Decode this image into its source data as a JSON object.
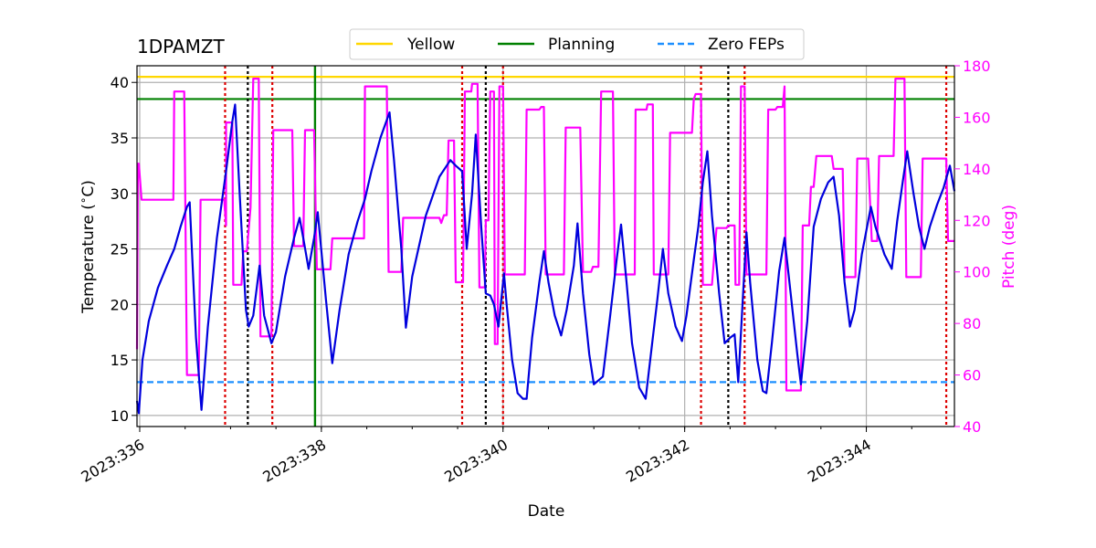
{
  "chart_data": {
    "type": "line",
    "title": "1DPAMZT",
    "xlabel": "Date",
    "ylabel_left": "Temperature ($^\\circ$C)",
    "ylabel_right": "Pitch (deg)",
    "xlim": [
      335.97,
      344.97
    ],
    "ylim_left": [
      9.0,
      41.5
    ],
    "ylim_right": [
      40,
      180
    ],
    "x_ticks": [
      {
        "value": 336,
        "label": "2023:336"
      },
      {
        "value": 338,
        "label": "2023:338"
      },
      {
        "value": 340,
        "label": "2023:340"
      },
      {
        "value": 342,
        "label": "2023:342"
      },
      {
        "value": 344,
        "label": "2023:344"
      }
    ],
    "y_ticks_left": [
      10,
      15,
      20,
      25,
      30,
      35,
      40
    ],
    "y_ticks_right": [
      40,
      60,
      80,
      100,
      120,
      140,
      160,
      180
    ],
    "grid": true,
    "legend_position": "top-center",
    "legend": [
      {
        "label": "Yellow",
        "color": "#ffd700",
        "style": "solid"
      },
      {
        "label": "Planning",
        "color": "#008000",
        "style": "solid"
      },
      {
        "label": "Zero FEPs",
        "color": "#1e90ff",
        "style": "dashed"
      }
    ],
    "hlines": [
      {
        "name": "yellow",
        "value": 40.5,
        "color": "#ffd700",
        "style": "solid"
      },
      {
        "name": "planning",
        "value": 38.5,
        "color": "#008000",
        "style": "solid"
      },
      {
        "name": "zero-feps",
        "value": 13.0,
        "color": "#1e90ff",
        "style": "dashed"
      }
    ],
    "vlines_red": [
      336.94,
      337.46,
      339.55,
      340.0,
      342.18,
      342.66,
      344.88
    ],
    "vlines_black": [
      337.19,
      339.81,
      342.48
    ],
    "vline_green": 337.93,
    "series": [
      {
        "name": "1DPAMZT",
        "axis": "left",
        "color": "#0000dd",
        "points": [
          [
            335.97,
            11.3
          ],
          [
            335.99,
            10.2
          ],
          [
            336.03,
            15.0
          ],
          [
            336.1,
            18.5
          ],
          [
            336.2,
            21.5
          ],
          [
            336.3,
            23.5
          ],
          [
            336.38,
            25.0
          ],
          [
            336.45,
            27.0
          ],
          [
            336.52,
            28.8
          ],
          [
            336.55,
            29.2
          ],
          [
            336.62,
            17.0
          ],
          [
            336.68,
            10.5
          ],
          [
            336.75,
            18.0
          ],
          [
            336.85,
            26.0
          ],
          [
            336.95,
            32.0
          ],
          [
            337.02,
            36.5
          ],
          [
            337.05,
            38.0
          ],
          [
            337.1,
            30.0
          ],
          [
            337.17,
            19.5
          ],
          [
            337.2,
            18.0
          ],
          [
            337.25,
            19.0
          ],
          [
            337.32,
            23.5
          ],
          [
            337.37,
            19.0
          ],
          [
            337.45,
            16.5
          ],
          [
            337.5,
            17.5
          ],
          [
            337.6,
            22.5
          ],
          [
            337.7,
            26.0
          ],
          [
            337.76,
            27.8
          ],
          [
            337.8,
            26.0
          ],
          [
            337.86,
            23.2
          ],
          [
            337.92,
            26.0
          ],
          [
            337.96,
            28.3
          ],
          [
            338.05,
            20.5
          ],
          [
            338.12,
            14.7
          ],
          [
            338.2,
            19.5
          ],
          [
            338.3,
            24.5
          ],
          [
            338.4,
            27.5
          ],
          [
            338.48,
            29.5
          ],
          [
            338.55,
            32.0
          ],
          [
            338.65,
            35.0
          ],
          [
            338.75,
            37.3
          ],
          [
            338.8,
            33.0
          ],
          [
            338.88,
            25.0
          ],
          [
            338.93,
            17.9
          ],
          [
            339.0,
            22.5
          ],
          [
            339.15,
            28.0
          ],
          [
            339.3,
            31.5
          ],
          [
            339.42,
            33.0
          ],
          [
            339.48,
            32.5
          ],
          [
            339.55,
            32.0
          ],
          [
            339.6,
            25.0
          ],
          [
            339.66,
            30.0
          ],
          [
            339.7,
            35.3
          ],
          [
            339.76,
            27.0
          ],
          [
            339.81,
            21.0
          ],
          [
            339.86,
            20.8
          ],
          [
            339.9,
            20.0
          ],
          [
            339.95,
            18.0
          ],
          [
            340.01,
            22.8
          ],
          [
            340.04,
            20.0
          ],
          [
            340.1,
            15.0
          ],
          [
            340.16,
            12.0
          ],
          [
            340.22,
            11.5
          ],
          [
            340.26,
            11.5
          ],
          [
            340.32,
            17.0
          ],
          [
            340.4,
            22.0
          ],
          [
            340.45,
            24.8
          ],
          [
            340.5,
            22.0
          ],
          [
            340.57,
            19.0
          ],
          [
            340.64,
            17.2
          ],
          [
            340.7,
            19.5
          ],
          [
            340.78,
            23.5
          ],
          [
            340.82,
            27.3
          ],
          [
            340.88,
            21.0
          ],
          [
            340.95,
            15.5
          ],
          [
            341.0,
            12.8
          ],
          [
            341.1,
            13.5
          ],
          [
            341.18,
            19.0
          ],
          [
            341.25,
            24.0
          ],
          [
            341.3,
            27.2
          ],
          [
            341.36,
            22.0
          ],
          [
            341.42,
            16.5
          ],
          [
            341.5,
            12.5
          ],
          [
            341.57,
            11.5
          ],
          [
            341.62,
            15.0
          ],
          [
            341.7,
            20.5
          ],
          [
            341.76,
            25.0
          ],
          [
            341.82,
            21.0
          ],
          [
            341.9,
            18.0
          ],
          [
            341.97,
            16.7
          ],
          [
            342.02,
            19.0
          ],
          [
            342.1,
            24.0
          ],
          [
            342.15,
            27.0
          ],
          [
            342.2,
            31.0
          ],
          [
            342.25,
            33.8
          ],
          [
            342.3,
            28.0
          ],
          [
            342.38,
            21.0
          ],
          [
            342.44,
            16.5
          ],
          [
            342.5,
            17.0
          ],
          [
            342.55,
            17.3
          ],
          [
            342.59,
            13.0
          ],
          [
            342.65,
            22.0
          ],
          [
            342.68,
            26.5
          ],
          [
            342.72,
            22.0
          ],
          [
            342.8,
            15.0
          ],
          [
            342.86,
            12.2
          ],
          [
            342.9,
            12.0
          ],
          [
            342.96,
            16.5
          ],
          [
            343.04,
            23.0
          ],
          [
            343.1,
            26.0
          ],
          [
            343.18,
            20.0
          ],
          [
            343.24,
            15.5
          ],
          [
            343.28,
            12.8
          ],
          [
            343.35,
            18.5
          ],
          [
            343.42,
            27.0
          ],
          [
            343.5,
            29.5
          ],
          [
            343.58,
            31.0
          ],
          [
            343.64,
            31.5
          ],
          [
            343.7,
            28.0
          ],
          [
            343.76,
            22.0
          ],
          [
            343.82,
            18.0
          ],
          [
            343.87,
            19.5
          ],
          [
            343.95,
            24.5
          ],
          [
            344.05,
            28.8
          ],
          [
            344.1,
            27.0
          ],
          [
            344.2,
            24.5
          ],
          [
            344.28,
            23.2
          ],
          [
            344.34,
            27.5
          ],
          [
            344.4,
            31.0
          ],
          [
            344.45,
            33.8
          ],
          [
            344.52,
            30.0
          ],
          [
            344.58,
            27.0
          ],
          [
            344.64,
            25.0
          ],
          [
            344.7,
            27.0
          ],
          [
            344.78,
            29.0
          ],
          [
            344.85,
            30.5
          ],
          [
            344.92,
            32.5
          ],
          [
            344.97,
            30.2
          ]
        ]
      },
      {
        "name": "Pitch",
        "axis": "right",
        "color": "#ff00ff",
        "points": [
          [
            335.97,
            70
          ],
          [
            335.98,
            142
          ],
          [
            335.99,
            142
          ],
          [
            336.02,
            128
          ],
          [
            336.37,
            128
          ],
          [
            336.38,
            170
          ],
          [
            336.49,
            170
          ],
          [
            336.52,
            60
          ],
          [
            336.65,
            60
          ],
          [
            336.67,
            128
          ],
          [
            336.93,
            128
          ],
          [
            336.95,
            118
          ],
          [
            336.95,
            158
          ],
          [
            337.02,
            158
          ],
          [
            337.03,
            95
          ],
          [
            337.12,
            95
          ],
          [
            337.14,
            108
          ],
          [
            337.18,
            108
          ],
          [
            337.22,
            125
          ],
          [
            337.25,
            175
          ],
          [
            337.31,
            175
          ],
          [
            337.33,
            75
          ],
          [
            337.45,
            75
          ],
          [
            337.47,
            155
          ],
          [
            337.68,
            155
          ],
          [
            337.7,
            110
          ],
          [
            337.8,
            110
          ],
          [
            337.82,
            155
          ],
          [
            337.92,
            155
          ],
          [
            337.95,
            101
          ],
          [
            338.1,
            101
          ],
          [
            338.12,
            113
          ],
          [
            338.47,
            113
          ],
          [
            338.48,
            172
          ],
          [
            338.72,
            172
          ],
          [
            338.74,
            100
          ],
          [
            338.88,
            100
          ],
          [
            338.9,
            121
          ],
          [
            339.3,
            121
          ],
          [
            339.32,
            119
          ],
          [
            339.35,
            122
          ],
          [
            339.38,
            122
          ],
          [
            339.4,
            151
          ],
          [
            339.46,
            151
          ],
          [
            339.48,
            96
          ],
          [
            339.56,
            96
          ],
          [
            339.58,
            170
          ],
          [
            339.65,
            170
          ],
          [
            339.66,
            173
          ],
          [
            339.72,
            173
          ],
          [
            339.74,
            94
          ],
          [
            339.8,
            94
          ],
          [
            339.81,
            120
          ],
          [
            339.84,
            120
          ],
          [
            339.86,
            170
          ],
          [
            339.9,
            170
          ],
          [
            339.91,
            72
          ],
          [
            339.94,
            72
          ],
          [
            339.96,
            172
          ],
          [
            340.0,
            172
          ],
          [
            340.02,
            99
          ],
          [
            340.24,
            99
          ],
          [
            340.26,
            163
          ],
          [
            340.4,
            163
          ],
          [
            340.42,
            164
          ],
          [
            340.45,
            164
          ],
          [
            340.47,
            99
          ],
          [
            340.67,
            99
          ],
          [
            340.69,
            156
          ],
          [
            340.85,
            156
          ],
          [
            340.88,
            100
          ],
          [
            340.97,
            100
          ],
          [
            340.99,
            102
          ],
          [
            341.05,
            102
          ],
          [
            341.08,
            170
          ],
          [
            341.21,
            170
          ],
          [
            341.23,
            99
          ],
          [
            341.45,
            99
          ],
          [
            341.46,
            163
          ],
          [
            341.58,
            163
          ],
          [
            341.59,
            165
          ],
          [
            341.65,
            165
          ],
          [
            341.66,
            99
          ],
          [
            341.82,
            99
          ],
          [
            341.84,
            154
          ],
          [
            342.08,
            154
          ],
          [
            342.1,
            167
          ],
          [
            342.12,
            169
          ],
          [
            342.18,
            169
          ],
          [
            342.2,
            95
          ],
          [
            342.3,
            95
          ],
          [
            342.35,
            117
          ],
          [
            342.46,
            117
          ],
          [
            342.48,
            118
          ],
          [
            342.55,
            118
          ],
          [
            342.56,
            95
          ],
          [
            342.6,
            95
          ],
          [
            342.62,
            172
          ],
          [
            342.66,
            172
          ],
          [
            342.68,
            99
          ],
          [
            342.9,
            99
          ],
          [
            342.92,
            163
          ],
          [
            343.0,
            163
          ],
          [
            343.02,
            164
          ],
          [
            343.08,
            164
          ],
          [
            343.1,
            172
          ],
          [
            343.12,
            54
          ],
          [
            343.28,
            54
          ],
          [
            343.3,
            118
          ],
          [
            343.37,
            118
          ],
          [
            343.39,
            133
          ],
          [
            343.42,
            133
          ],
          [
            343.45,
            145
          ],
          [
            343.62,
            145
          ],
          [
            343.64,
            140
          ],
          [
            343.74,
            140
          ],
          [
            343.76,
            98
          ],
          [
            343.88,
            98
          ],
          [
            343.9,
            144
          ],
          [
            344.02,
            144
          ],
          [
            344.06,
            112
          ],
          [
            344.12,
            112
          ],
          [
            344.14,
            145
          ],
          [
            344.3,
            145
          ],
          [
            344.32,
            175
          ],
          [
            344.42,
            175
          ],
          [
            344.44,
            98
          ],
          [
            344.6,
            98
          ],
          [
            344.62,
            144
          ],
          [
            344.82,
            144
          ],
          [
            344.88,
            144
          ],
          [
            344.9,
            112
          ],
          [
            344.97,
            112
          ]
        ]
      }
    ]
  }
}
